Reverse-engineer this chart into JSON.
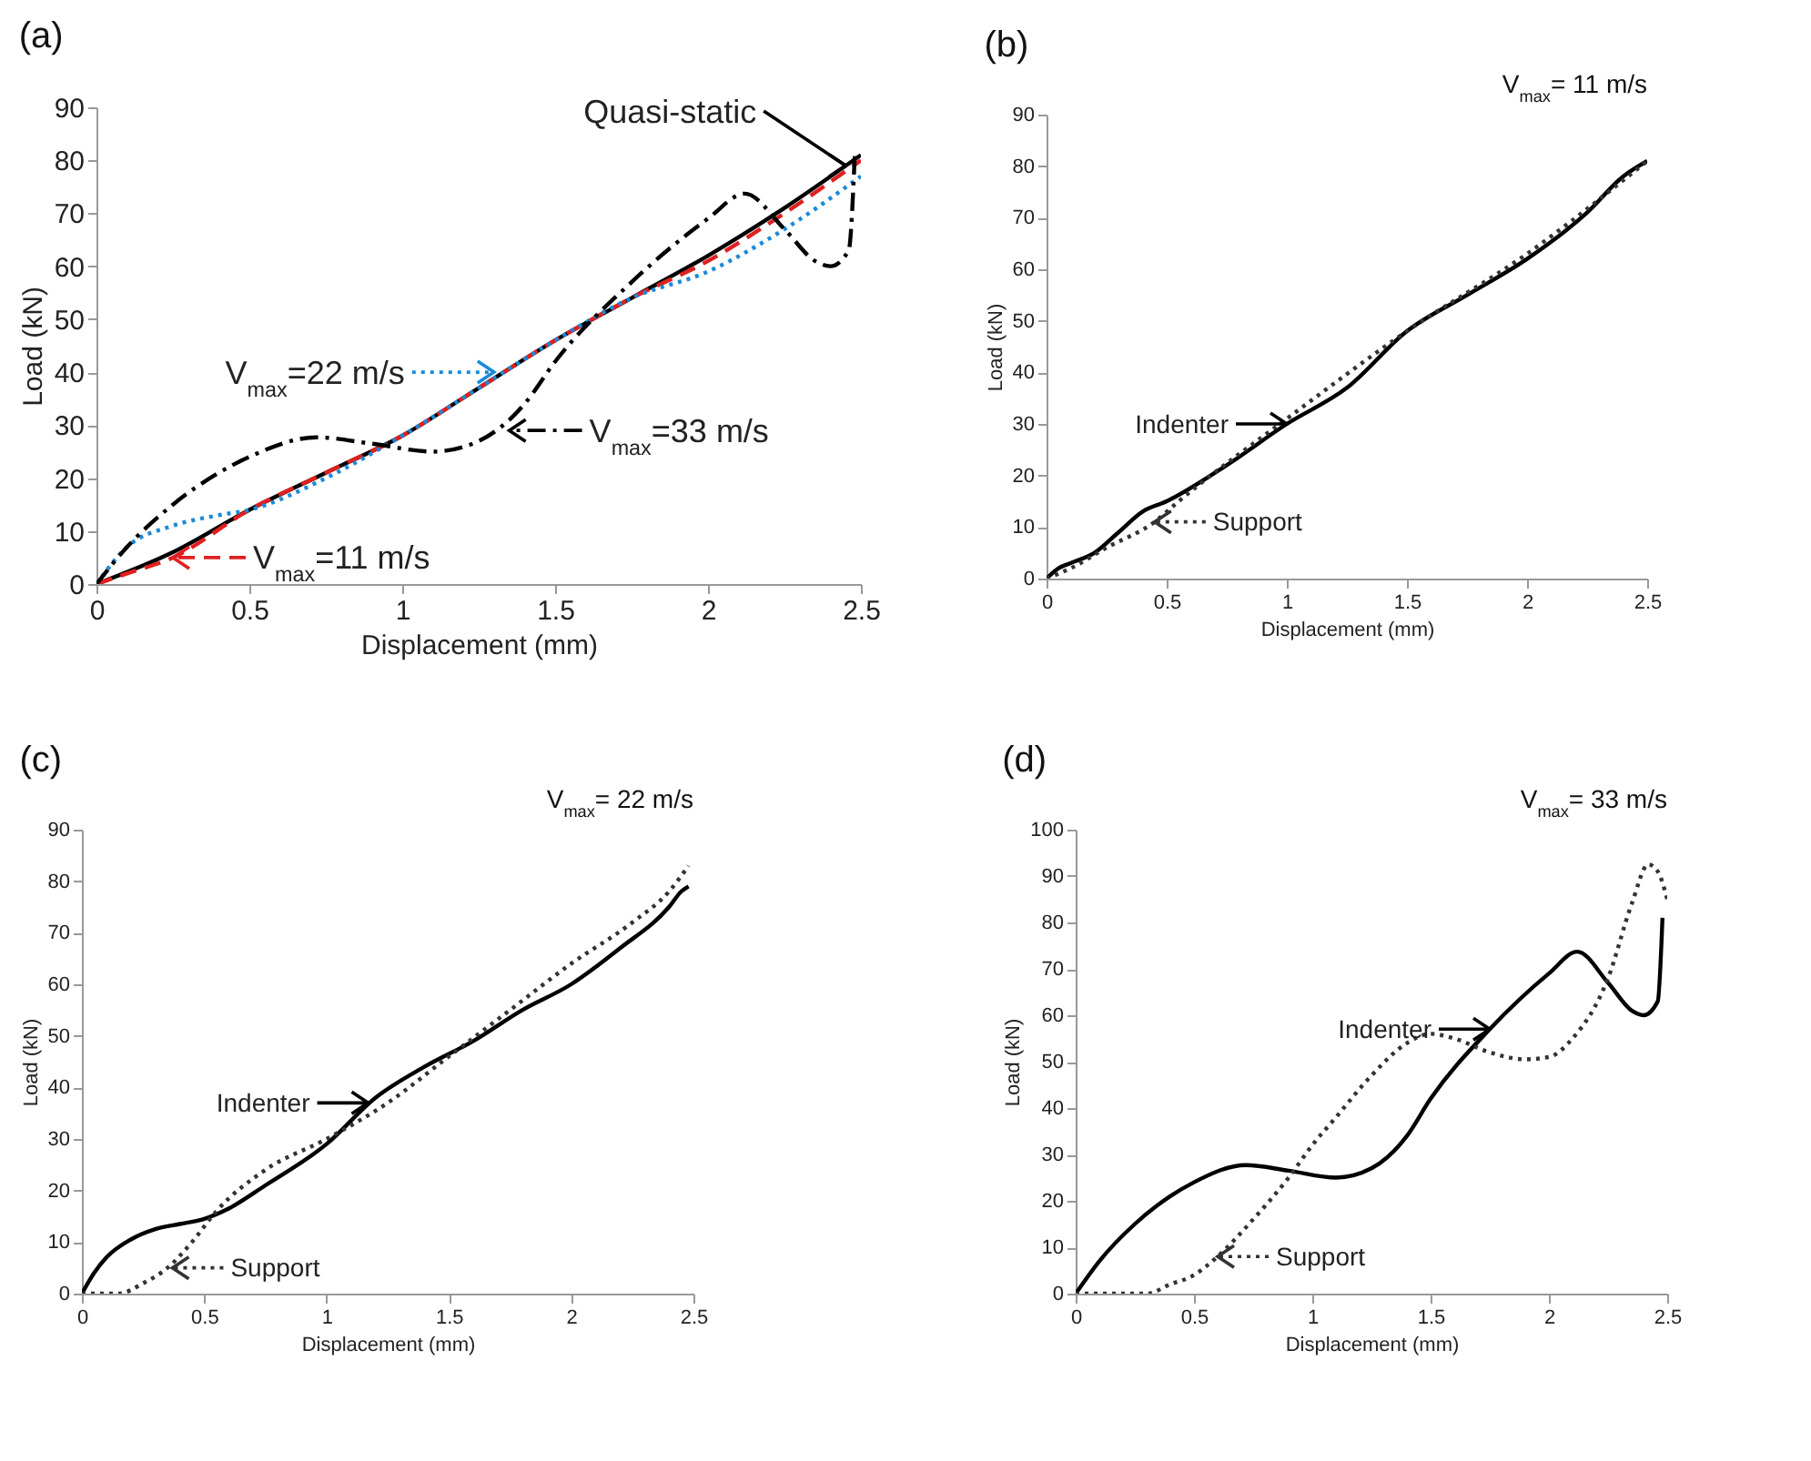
{
  "chart_data": [
    {
      "type": "line",
      "title": "(a)",
      "xlabel": "Displacement (mm)",
      "ylabel": "Load (kN)",
      "xlim": [
        0,
        2.5
      ],
      "xticks": [
        0,
        0.5,
        1,
        1.5,
        2,
        2.5
      ],
      "ylim": [
        0,
        90
      ],
      "yticks": [
        0,
        10,
        20,
        30,
        40,
        50,
        60,
        70,
        80,
        90
      ],
      "grid": false,
      "series": [
        {
          "color": "#000000",
          "line_style": "solid",
          "x": [
            0,
            0.25,
            0.5,
            0.75,
            1,
            1.25,
            1.5,
            1.75,
            2,
            2.25,
            2.5
          ],
          "values": [
            0,
            6,
            14,
            21,
            28,
            37,
            46,
            54,
            62,
            71,
            81
          ]
        },
        {
          "color": "#e02020",
          "line_style": "dashed",
          "x": [
            0,
            0.1,
            0.25,
            0.5,
            0.75,
            1,
            1.25,
            1.5,
            1.75,
            2,
            2.25,
            2.5
          ],
          "values": [
            0,
            2,
            5,
            14,
            21,
            28,
            37,
            46,
            54,
            61,
            70,
            80
          ]
        },
        {
          "color": "#1a8ad8",
          "line_style": "dotted",
          "x": [
            0,
            0.1,
            0.25,
            0.4,
            0.5,
            0.75,
            1,
            1.25,
            1.5,
            1.75,
            2,
            2.25,
            2.5
          ],
          "values": [
            0,
            7,
            11,
            13,
            14,
            20,
            28,
            37,
            46,
            54,
            59,
            67,
            77
          ]
        },
        {
          "color": "#000000",
          "line_style": "dashdot",
          "x": [
            0,
            0.1,
            0.25,
            0.4,
            0.5,
            0.72,
            0.9,
            1.1,
            1.25,
            1.4,
            1.5,
            1.75,
            2,
            2.12,
            2.25,
            2.35,
            2.4,
            2.46,
            2.48
          ],
          "values": [
            0,
            7,
            15,
            21,
            24,
            27.7,
            26.5,
            25,
            27,
            34,
            42,
            57,
            69,
            73.7,
            67,
            61,
            60,
            63,
            81
          ]
        }
      ],
      "annotations": [
        {
          "text": "Quasi-static",
          "x": 2.45,
          "y": 79
        },
        {
          "text": "V$_{max}$=11 m/s",
          "x": 0.25,
          "y": 5
        },
        {
          "text": "V$_{max}$=22 m/s",
          "x": 1.3,
          "y": 40
        },
        {
          "text": "V$_{max}$=33 m/s",
          "x": 1.35,
          "y": 29
        }
      ]
    },
    {
      "type": "line",
      "title": "(b)",
      "subtitle": "V$_{max}$= 11 m/s",
      "xlabel": "Displacement (mm)",
      "ylabel": "Load (kN)",
      "xlim": [
        0,
        2.5
      ],
      "xticks": [
        0,
        0.5,
        1,
        1.5,
        2,
        2.5
      ],
      "ylim": [
        0,
        90
      ],
      "yticks": [
        0,
        10,
        20,
        30,
        40,
        50,
        60,
        70,
        80,
        90
      ],
      "grid": false,
      "series": [
        {
          "color": "#000000",
          "line_style": "solid",
          "x": [
            0,
            0.05,
            0.1,
            0.2,
            0.3,
            0.4,
            0.5,
            0.75,
            1,
            1.25,
            1.5,
            1.75,
            2,
            2.25,
            2.4,
            2.5
          ],
          "values": [
            0,
            2,
            3,
            5,
            9,
            13,
            15,
            22,
            30,
            37,
            48,
            55,
            62,
            71,
            78,
            81
          ]
        },
        {
          "color": "#333333",
          "line_style": "dotted",
          "x": [
            0,
            0.1,
            0.25,
            0.45,
            0.55,
            1,
            1.5,
            2,
            2.5
          ],
          "values": [
            0,
            2,
            6,
            11,
            15,
            31,
            48,
            63,
            81
          ]
        }
      ],
      "annotations": [
        {
          "text": "Indenter",
          "x": 1,
          "y": 30
        },
        {
          "text": "Support",
          "x": 0.45,
          "y": 11
        }
      ]
    },
    {
      "type": "line",
      "title": "(c)",
      "subtitle": "V$_{max}$= 22 m/s",
      "xlabel": "Displacement (mm)",
      "ylabel": "Load (kN)",
      "xlim": [
        0,
        2.5
      ],
      "xticks": [
        0,
        0.5,
        1,
        1.5,
        2,
        2.5
      ],
      "ylim": [
        0,
        90
      ],
      "yticks": [
        0,
        10,
        20,
        30,
        40,
        50,
        60,
        70,
        80,
        90
      ],
      "grid": false,
      "series": [
        {
          "color": "#000000",
          "line_style": "solid",
          "x": [
            0,
            0.05,
            0.1,
            0.2,
            0.3,
            0.4,
            0.5,
            0.6,
            0.75,
            1,
            1.2,
            1.4,
            1.6,
            1.8,
            2,
            2.2,
            2.4,
            2.45,
            2.48
          ],
          "values": [
            0,
            4,
            7,
            10.5,
            12.5,
            13.5,
            14.5,
            16.5,
            21,
            29,
            38,
            44,
            49,
            55,
            60,
            67,
            75,
            78,
            79
          ]
        },
        {
          "color": "#333333",
          "line_style": "dotted",
          "x": [
            0,
            0.05,
            0.15,
            0.25,
            0.35,
            0.45,
            0.55,
            0.75,
            1,
            1.25,
            1.5,
            1.75,
            2,
            2.25,
            2.4,
            2.48
          ],
          "values": [
            0,
            0,
            0,
            2,
            5,
            10,
            16,
            24,
            30,
            37,
            46,
            55,
            64,
            72,
            78,
            83
          ]
        }
      ],
      "annotations": [
        {
          "text": "Indenter",
          "x": 1.17,
          "y": 37
        },
        {
          "text": "Support",
          "x": 0.37,
          "y": 5
        }
      ]
    },
    {
      "type": "line",
      "title": "(d)",
      "subtitle": "V$_{max}$= 33 m/s",
      "xlabel": "Displacement (mm)",
      "ylabel": "Load (kN)",
      "xlim": [
        0,
        2.5
      ],
      "xticks": [
        0,
        0.5,
        1,
        1.5,
        2,
        2.5
      ],
      "ylim": [
        0,
        100
      ],
      "yticks": [
        0,
        10,
        20,
        30,
        40,
        50,
        60,
        70,
        80,
        90,
        100
      ],
      "grid": false,
      "series": [
        {
          "color": "#000000",
          "line_style": "solid",
          "x": [
            0,
            0.1,
            0.25,
            0.4,
            0.5,
            0.72,
            0.9,
            1.1,
            1.25,
            1.4,
            1.5,
            1.75,
            2,
            2.12,
            2.25,
            2.35,
            2.4,
            2.46,
            2.48
          ],
          "values": [
            0,
            7,
            15,
            21,
            24,
            27.7,
            26.5,
            25,
            27,
            34,
            42,
            57,
            69,
            73.7,
            67,
            61,
            60,
            63,
            81
          ]
        },
        {
          "color": "#333333",
          "line_style": "dotted",
          "x": [
            0,
            0.3,
            0.4,
            0.5,
            0.6,
            0.75,
            0.9,
            1,
            1.1,
            1.25,
            1.4,
            1.5,
            1.6,
            1.75,
            1.9,
            2,
            2.1,
            2.25,
            2.35,
            2.42,
            2.46,
            2.5
          ],
          "values": [
            0,
            0,
            2,
            4,
            8,
            16,
            25,
            32,
            38,
            47,
            54,
            56,
            55,
            52,
            50.5,
            51,
            55,
            68,
            84,
            92.5,
            91,
            85
          ]
        }
      ],
      "annotations": [
        {
          "text": "Indenter",
          "x": 1.75,
          "y": 57
        },
        {
          "text": "Support",
          "x": 0.6,
          "y": 8
        }
      ]
    }
  ]
}
